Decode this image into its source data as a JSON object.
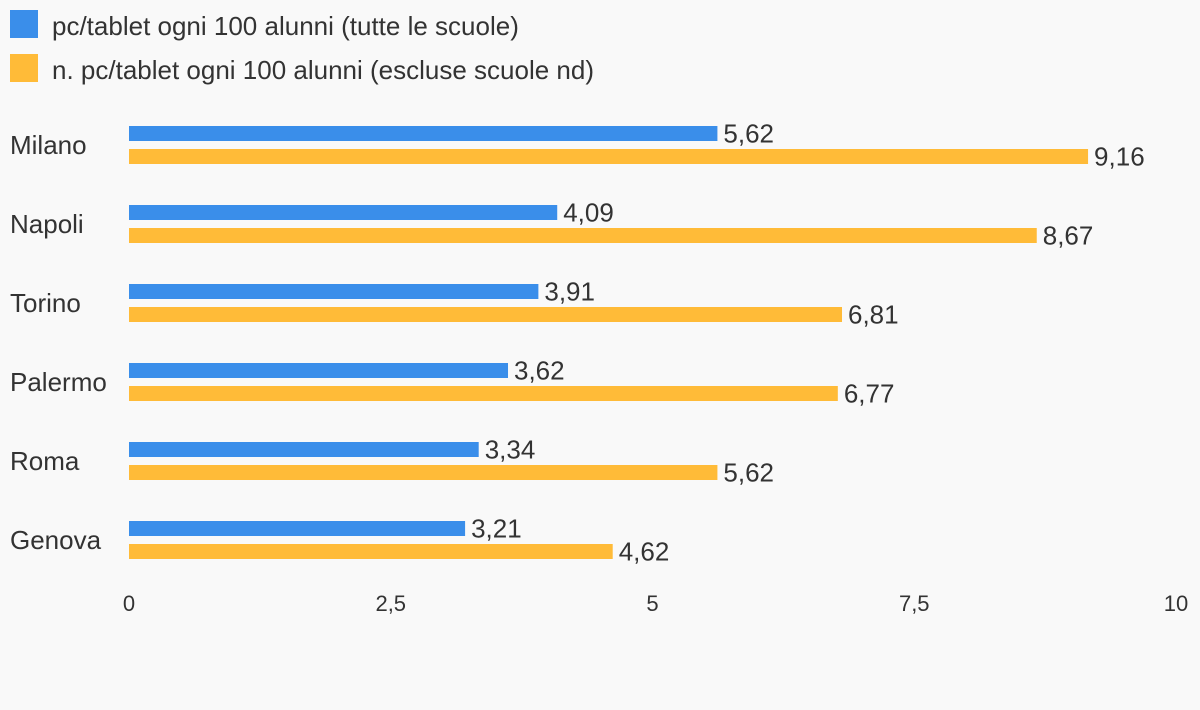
{
  "chart_data": {
    "type": "bar",
    "orientation": "horizontal",
    "categories": [
      "Milano",
      "Napoli",
      "Torino",
      "Palermo",
      "Roma",
      "Genova"
    ],
    "series": [
      {
        "name": "pc/tablet ogni 100 alunni (tutte le scuole)",
        "color": "#3a8eea",
        "values": [
          5.62,
          4.09,
          3.91,
          3.62,
          3.34,
          3.21
        ],
        "value_labels": [
          "5,62",
          "4,09",
          "3,91",
          "3,62",
          "3,34",
          "3,21"
        ]
      },
      {
        "name": "n. pc/tablet ogni 100 alunni (escluse scuole nd)",
        "color": "#ffbb38",
        "values": [
          9.16,
          8.67,
          6.81,
          6.77,
          5.62,
          4.62
        ],
        "value_labels": [
          "9,16",
          "8,67",
          "6,81",
          "6,77",
          "5,62",
          "4,62"
        ]
      }
    ],
    "x_ticks": [
      0,
      2.5,
      5,
      7.5,
      10
    ],
    "x_tick_labels": [
      "0",
      "2,5",
      "5",
      "7,5",
      "10"
    ],
    "xlim": [
      0,
      10
    ],
    "grid": false,
    "legend_position": "top-left"
  }
}
